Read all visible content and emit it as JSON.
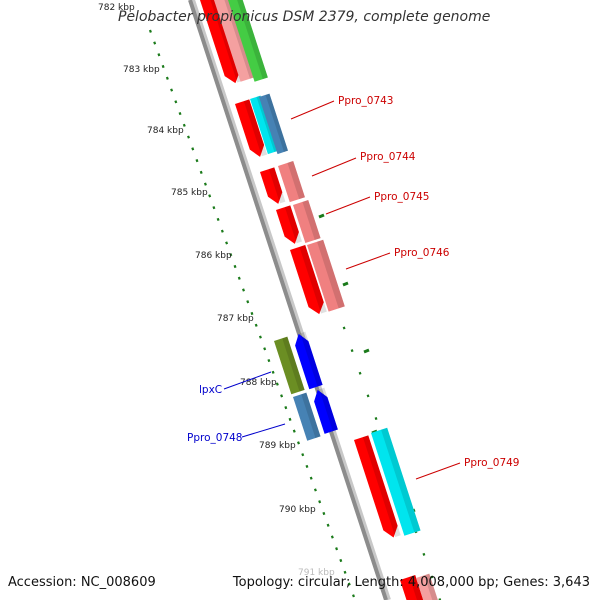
{
  "map_title": "Pelobacter propionicus DSM 2379, complete genome",
  "accession": "Accession: NC_008609",
  "summary": "Topology: circular; Length: 4,008,000 bp; Genes: 3,643",
  "kbp_ticks": [
    "782 kbp",
    "783 kbp",
    "784 kbp",
    "785 kbp",
    "786 kbp",
    "787 kbp",
    "788 kbp",
    "789 kbp",
    "790 kbp",
    "791 kbp"
  ],
  "gene_labels": [
    {
      "text": "Ppro_0743",
      "color": "#cc0000"
    },
    {
      "text": "Ppro_0744",
      "color": "#cc0000"
    },
    {
      "text": "Ppro_0745",
      "color": "#cc0000"
    },
    {
      "text": "Ppro_0746",
      "color": "#cc0000"
    },
    {
      "text": "lpxC",
      "color": "#0000cc"
    },
    {
      "text": "Ppro_0748",
      "color": "#0000cc"
    },
    {
      "text": "Ppro_0749",
      "color": "#cc0000"
    }
  ],
  "colors": {
    "backbone": "#8c8c8c",
    "tick": "#1a7a1a",
    "forward_cds": "#ff0000",
    "reverse_cds": "#0000ff",
    "pink_feature": "#f08080",
    "cyan_feature": "#00e5ee",
    "steelblue_feature": "#4682b4",
    "olive_feature": "#6b8e23",
    "green_feature": "#44cc44"
  }
}
